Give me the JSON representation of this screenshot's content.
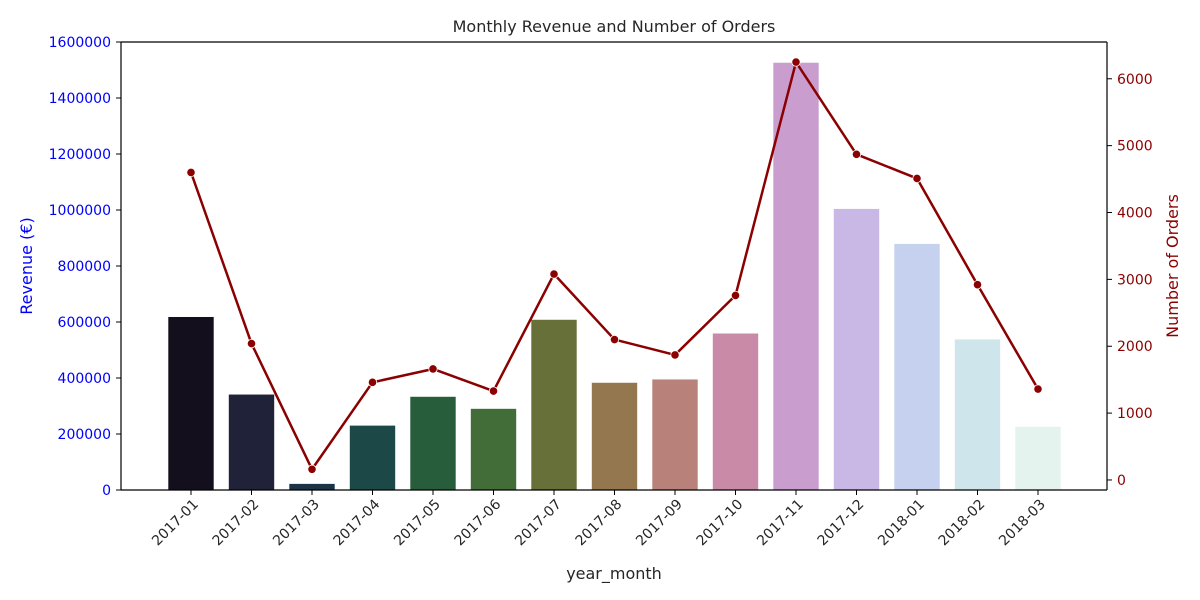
{
  "chart_data": {
    "type": "bar",
    "title": "Monthly Revenue and Number of Orders",
    "xlabel": "year_month",
    "ylabel": "Revenue (€)",
    "y2label": "Number of Orders",
    "categories": [
      "2017-01",
      "2017-02",
      "2017-03",
      "2017-04",
      "2017-05",
      "2017-06",
      "2017-07",
      "2017-08",
      "2017-09",
      "2017-10",
      "2017-11",
      "2017-12",
      "2018-01",
      "2018-02",
      "2018-03"
    ],
    "series": [
      {
        "type": "bar",
        "axis": "left",
        "values": [
          619000,
          342000,
          23000,
          231000,
          334000,
          291000,
          609000,
          384000,
          396000,
          560000,
          1527000,
          1005000,
          880000,
          539000,
          227000
        ],
        "colors": [
          "#140f1c",
          "#1f2238",
          "#1d3347",
          "#1c4848",
          "#285d3c",
          "#426d38",
          "#667038",
          "#95774f",
          "#b8817a",
          "#c98aa8",
          "#c99ecf",
          "#c9b7e6",
          "#c5d1ef",
          "#cfe5ec",
          "#e4f3ee"
        ]
      },
      {
        "type": "line",
        "axis": "right",
        "values": [
          4600,
          2040,
          160,
          1460,
          1660,
          1330,
          3080,
          2100,
          1870,
          2760,
          6250,
          4870,
          4510,
          2920,
          1360
        ],
        "color": "#8b0000"
      }
    ],
    "ylim": [
      0,
      1600000
    ],
    "yticks": [
      0,
      200000,
      400000,
      600000,
      800000,
      1000000,
      1200000,
      1400000,
      1600000
    ],
    "y2lim": [
      -150,
      6550
    ],
    "y2ticks": [
      0,
      1000,
      2000,
      3000,
      4000,
      5000,
      6000
    ],
    "grid": false,
    "left_axis_color": "#0000ff",
    "right_axis_color": "#8b0000"
  }
}
